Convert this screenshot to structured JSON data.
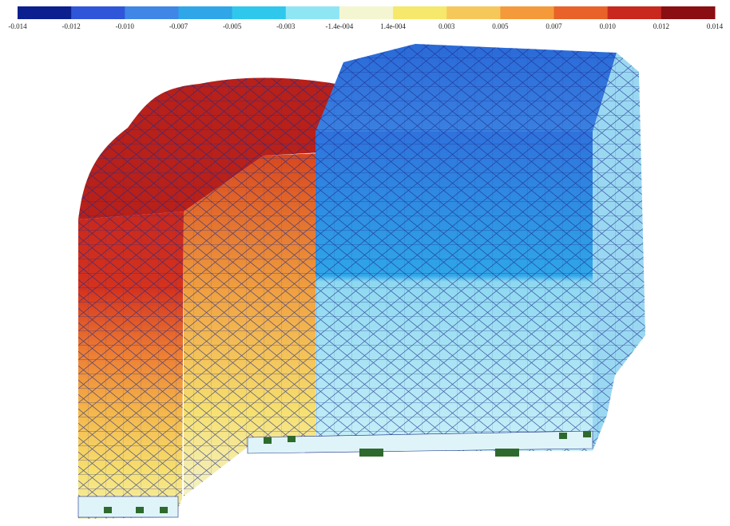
{
  "legend": {
    "labels": [
      "-0.014",
      "-0.012",
      "-0.010",
      "-0.007",
      "-0.005",
      "-0.003",
      "-1.4e-004",
      "1.4e-004",
      "0.003",
      "0.005",
      "0.007",
      "0.010",
      "0.012",
      "0.014"
    ],
    "colors": [
      "#0b1f8f",
      "#2f56d8",
      "#3f86e6",
      "#2fa6e8",
      "#2fc8ec",
      "#8ee6f4",
      "#f4f6d2",
      "#f6e86a",
      "#f6c85a",
      "#f49a3a",
      "#e8622a",
      "#c8281e",
      "#8a0e12"
    ]
  }
}
